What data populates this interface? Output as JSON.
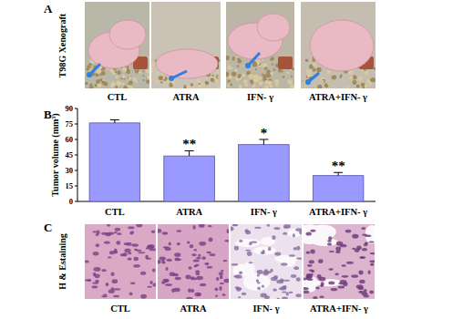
{
  "chart_data": {
    "type": "bar",
    "y_label": "Tumor volume (mm³)",
    "categories": [
      "CTL",
      "ATRA",
      "IFN- γ",
      "ATRA+IFN- γ"
    ],
    "values": [
      76,
      44,
      55,
      25
    ],
    "errors": [
      3,
      5,
      5,
      3
    ],
    "significance": [
      null,
      "**",
      "*",
      "**"
    ],
    "color": "#9999ff",
    "ylim": [
      0,
      90
    ],
    "yticks": [
      0,
      15,
      30,
      45,
      60,
      75,
      90
    ],
    "grid": false
  },
  "panels": [
    {
      "label": "A",
      "side_label": "T98G Xenograft",
      "captions": [
        "CTL",
        "ATRA",
        "IFN- γ",
        "ATRA+IFN- γ"
      ]
    },
    {
      "label": "B"
    },
    {
      "label": "C",
      "side_label": "H & Estaining",
      "captions": [
        "CTL",
        "ATRA",
        "IFN- γ",
        "ATRA+IFN- γ"
      ]
    }
  ]
}
